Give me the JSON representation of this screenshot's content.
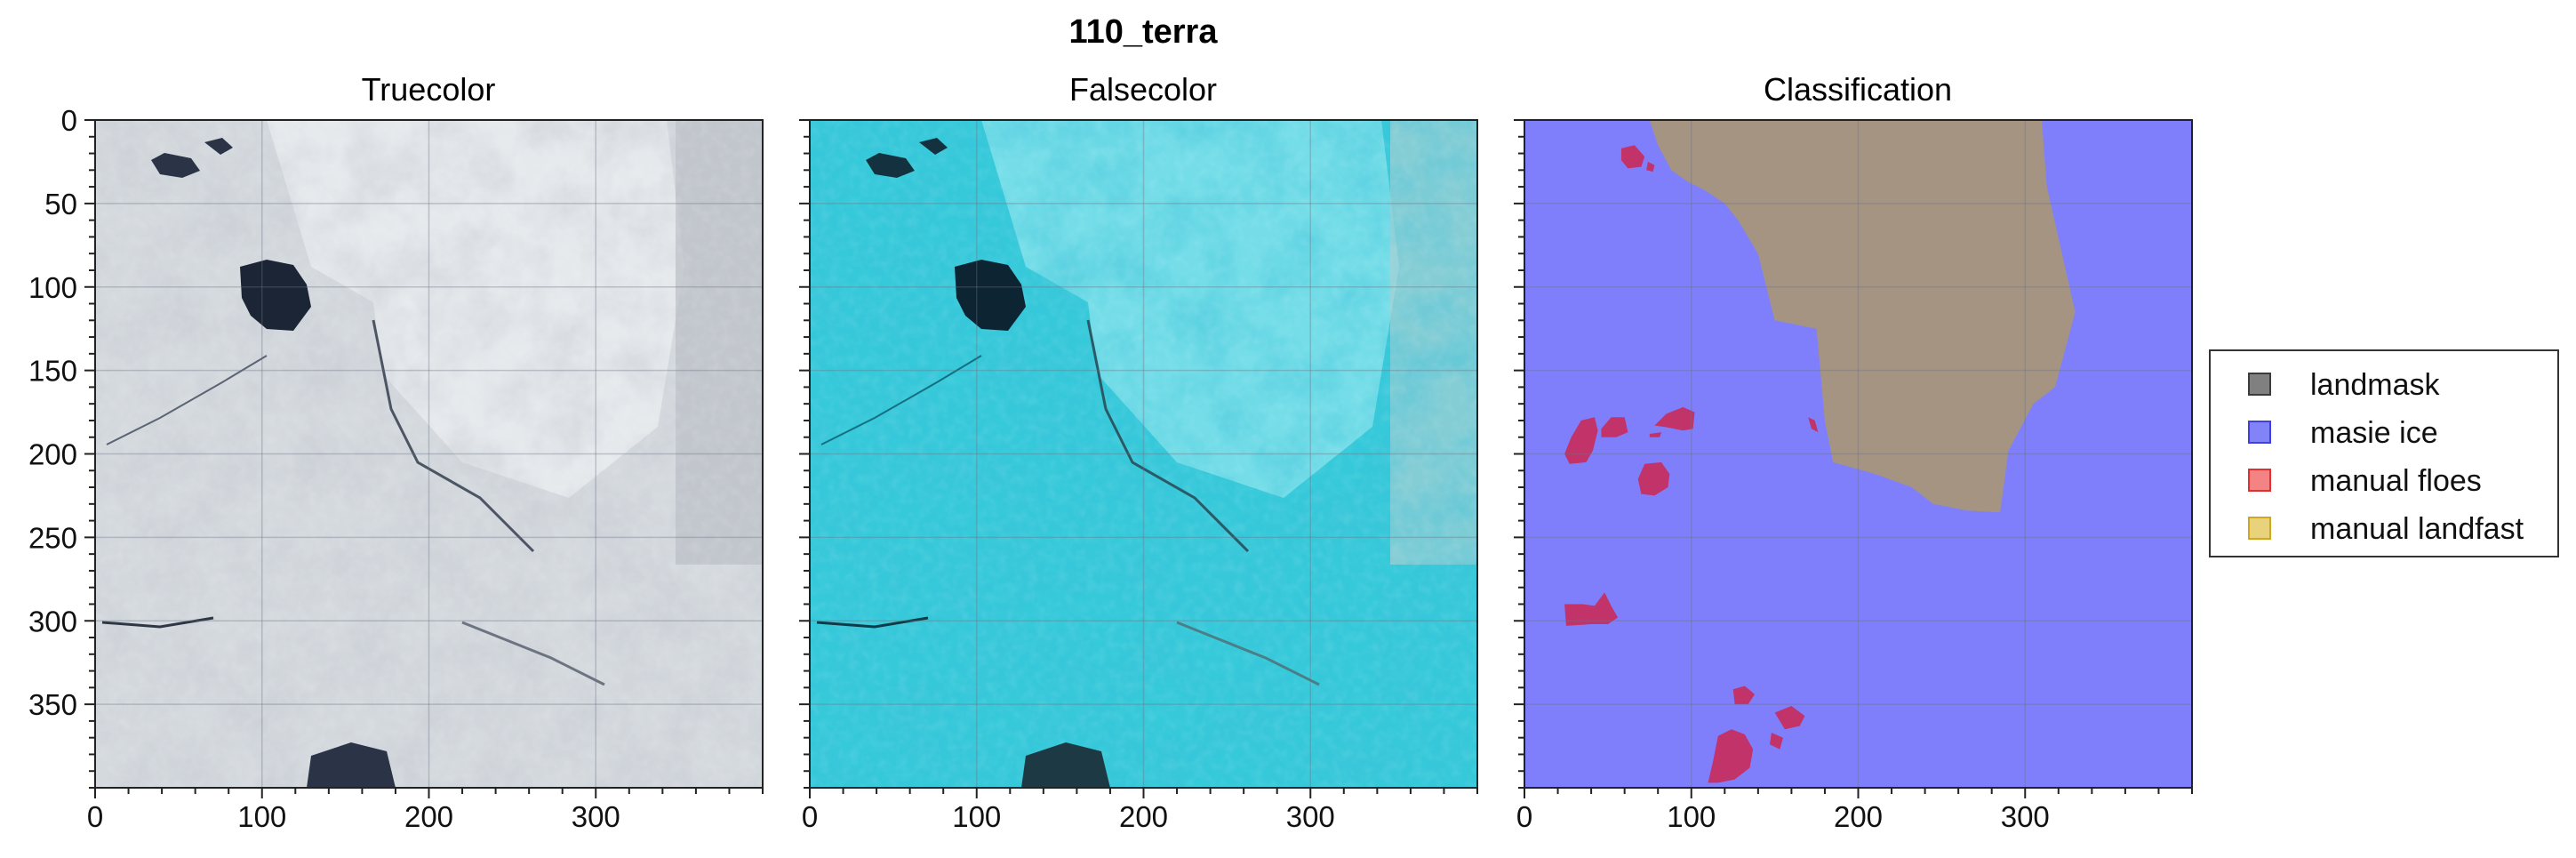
{
  "figure_title": "110_terra",
  "colors": {
    "masie_ice": "#7f7ffc",
    "landmask": "#a69482",
    "manual_floes": "#c2336a",
    "truecolor_base": "#d4d9de",
    "falsecolor_base": "#35c9da",
    "dark_water": "#1b2535"
  },
  "chart_data": [
    {
      "type": "image",
      "title": "Truecolor",
      "xlim": [
        0,
        400
      ],
      "ylim": [
        400,
        0
      ],
      "xticks": [
        0,
        100,
        200,
        300
      ],
      "yticks": [
        0,
        50,
        100,
        150,
        200,
        250,
        300,
        350
      ],
      "grid": true
    },
    {
      "type": "image",
      "title": "Falsecolor",
      "xlim": [
        0,
        400
      ],
      "ylim": [
        400,
        0
      ],
      "xticks": [
        0,
        100,
        200,
        300
      ],
      "grid": true
    },
    {
      "type": "image",
      "title": "Classification",
      "xlim": [
        0,
        400
      ],
      "ylim": [
        400,
        0
      ],
      "xticks": [
        0,
        100,
        200,
        300
      ],
      "grid": true,
      "legend_position": "right",
      "legend": [
        {
          "label": "landmask",
          "color": "#7a7a7a"
        },
        {
          "label": "masie ice",
          "color": "#7b7bf5"
        },
        {
          "label": "manual floes",
          "color": "#f07070"
        },
        {
          "label": "manual landfast",
          "color": "#e6cf6e"
        }
      ],
      "regions": [
        {
          "class": "landmask",
          "points": [
            [
              75,
              0
            ],
            [
              310,
              0
            ],
            [
              313,
              40
            ],
            [
              330,
              115
            ],
            [
              318,
              160
            ],
            [
              305,
              170
            ],
            [
              297,
              185
            ],
            [
              290,
              198
            ],
            [
              285,
              235
            ],
            [
              265,
              234
            ],
            [
              245,
              230
            ],
            [
              232,
              220
            ],
            [
              210,
              212
            ],
            [
              185,
              205
            ],
            [
              180,
              180
            ],
            [
              178,
              158
            ],
            [
              175,
              125
            ],
            [
              150,
              120
            ],
            [
              145,
              100
            ],
            [
              140,
              80
            ],
            [
              128,
              60
            ],
            [
              120,
              50
            ],
            [
              108,
              42
            ],
            [
              98,
              37
            ],
            [
              88,
              30
            ],
            [
              80,
              15
            ]
          ]
        },
        {
          "class": "manual floes",
          "points": [
            [
              58,
              17
            ],
            [
              66,
              15
            ],
            [
              72,
              22
            ],
            [
              70,
              28
            ],
            [
              62,
              29
            ],
            [
              58,
              24
            ]
          ]
        },
        {
          "class": "manual floes",
          "points": [
            [
              74,
              25
            ],
            [
              78,
              27
            ],
            [
              77,
              31
            ],
            [
              73,
              30
            ]
          ]
        },
        {
          "class": "manual floes",
          "points": [
            [
              28,
              190
            ],
            [
              34,
              180
            ],
            [
              42,
              178
            ],
            [
              44,
              186
            ],
            [
              41,
              198
            ],
            [
              37,
              205
            ],
            [
              27,
              206
            ],
            [
              24,
              200
            ]
          ]
        },
        {
          "class": "manual floes",
          "points": [
            [
              46,
              185
            ],
            [
              52,
              178
            ],
            [
              60,
              178
            ],
            [
              62,
              187
            ],
            [
              55,
              190
            ],
            [
              46,
              190
            ]
          ]
        },
        {
          "class": "manual floes",
          "points": [
            [
              78,
              183
            ],
            [
              85,
              176
            ],
            [
              95,
              172
            ],
            [
              102,
              175
            ],
            [
              101,
              185
            ],
            [
              95,
              186
            ],
            [
              85,
              184
            ]
          ]
        },
        {
          "class": "manual floes",
          "points": [
            [
              75,
              188
            ],
            [
              82,
              187
            ],
            [
              81,
              190
            ],
            [
              75,
              190
            ]
          ]
        },
        {
          "class": "manual floes",
          "points": [
            [
              68,
              215
            ],
            [
              72,
              206
            ],
            [
              82,
              205
            ],
            [
              87,
              212
            ],
            [
              86,
              220
            ],
            [
              78,
              225
            ],
            [
              70,
              224
            ]
          ]
        },
        {
          "class": "manual floes",
          "points": [
            [
              170,
              178
            ],
            [
              174,
              180
            ],
            [
              176,
              187
            ],
            [
              172,
              185
            ]
          ]
        },
        {
          "class": "manual floes",
          "points": [
            [
              24,
              290
            ],
            [
              35,
              290
            ],
            [
              42,
              291
            ],
            [
              48,
              283
            ],
            [
              52,
              291
            ],
            [
              56,
              298
            ],
            [
              50,
              302
            ],
            [
              40,
              302
            ],
            [
              25,
              303
            ]
          ]
        },
        {
          "class": "manual floes",
          "points": [
            [
              125,
              341
            ],
            [
              132,
              339
            ],
            [
              138,
              344
            ],
            [
              134,
              350
            ],
            [
              126,
              350
            ]
          ]
        },
        {
          "class": "manual floes",
          "points": [
            [
              116,
              369
            ],
            [
              124,
              365
            ],
            [
              132,
              368
            ],
            [
              137,
              377
            ],
            [
              135,
              388
            ],
            [
              126,
              395
            ],
            [
              116,
              397
            ],
            [
              110,
              397
            ],
            [
              113,
              384
            ]
          ]
        },
        {
          "class": "manual floes",
          "points": [
            [
              150,
              355
            ],
            [
              160,
              351
            ],
            [
              168,
              357
            ],
            [
              165,
              363
            ],
            [
              156,
              365
            ]
          ]
        },
        {
          "class": "manual floes",
          "points": [
            [
              148,
              367
            ],
            [
              155,
              370
            ],
            [
              153,
              377
            ],
            [
              147,
              374
            ]
          ]
        }
      ]
    }
  ]
}
